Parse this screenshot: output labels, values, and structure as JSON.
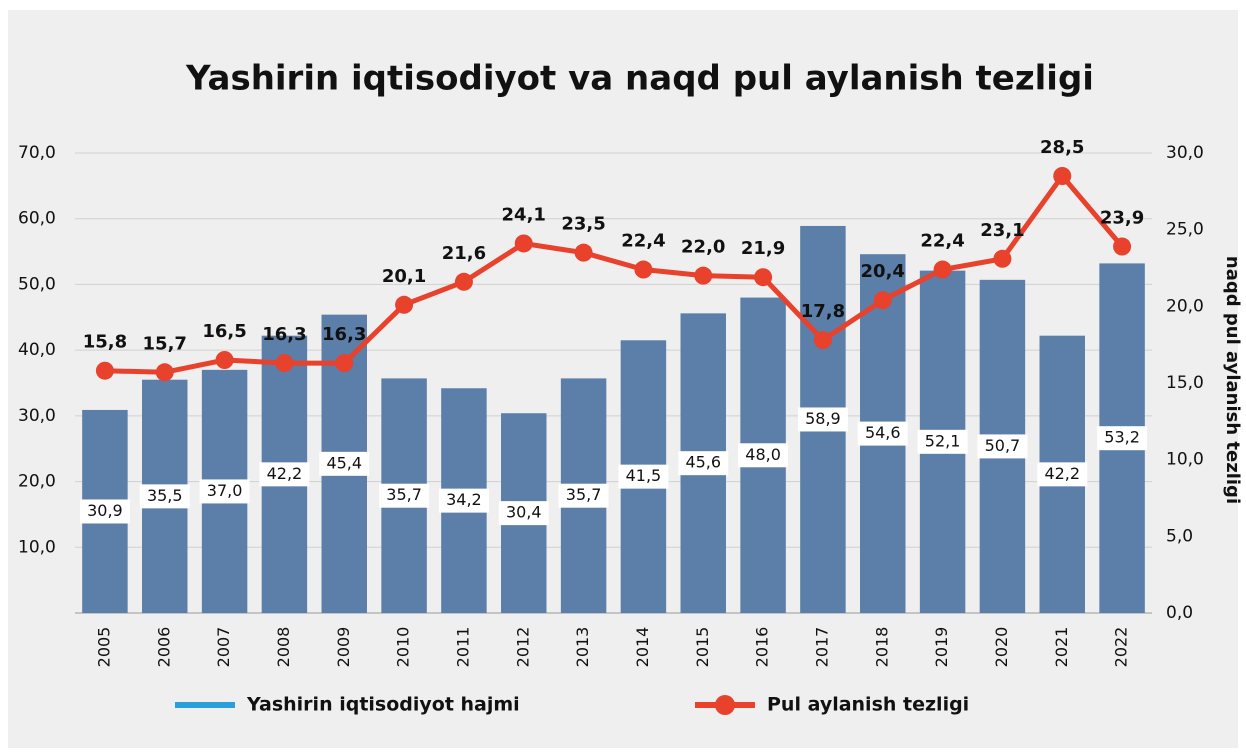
{
  "chart_data": {
    "type": "bar",
    "title": "Yashirin iqtisodiyot va naqd pul aylanish tezligi",
    "y2label": "naqd pul aylanish tezligi",
    "categories": [
      "2005",
      "2006",
      "2007",
      "2008",
      "2009",
      "2010",
      "2011",
      "2012",
      "2013",
      "2014",
      "2015",
      "2016",
      "2017",
      "2018",
      "2019",
      "2020",
      "2021",
      "2022"
    ],
    "series": [
      {
        "name": "Yashirin iqtisodiyot hajmi",
        "type": "bar",
        "color": "#5b7fa8",
        "legend_color": "#2a9fd8",
        "values": [
          30.9,
          35.5,
          37.0,
          42.2,
          45.4,
          35.7,
          34.2,
          30.4,
          35.7,
          41.5,
          45.6,
          48.0,
          58.9,
          54.6,
          52.1,
          50.7,
          42.2,
          53.2
        ],
        "value_labels": [
          "30,9",
          "35,5",
          "37,0",
          "42,2",
          "45,4",
          "35,7",
          "34,2",
          "30,4",
          "35,7",
          "41,5",
          "45,6",
          "48,0",
          "58,9",
          "54,6",
          "52,1",
          "50,7",
          "42,2",
          "53,2"
        ]
      },
      {
        "name": "Pul aylanish tezligi",
        "type": "line",
        "axis": "y2",
        "color": "#e8412c",
        "legend_color": "#e8412c",
        "values": [
          15.8,
          15.7,
          16.5,
          16.3,
          16.3,
          20.1,
          21.6,
          24.1,
          23.5,
          22.4,
          22.0,
          21.9,
          17.8,
          20.4,
          22.4,
          23.1,
          28.5,
          23.9
        ],
        "value_labels": [
          "15,8",
          "15,7",
          "16,5",
          "16,3",
          "16,3",
          "20,1",
          "21,6",
          "24,1",
          "23,5",
          "22,4",
          "22,0",
          "21,9",
          "17,8",
          "20,4",
          "22,4",
          "23,1",
          "28,5",
          "23,9"
        ]
      }
    ],
    "ylim": [
      0,
      70
    ],
    "yticks": [
      {
        "value": 10,
        "label": "10,0"
      },
      {
        "value": 20,
        "label": "20,0"
      },
      {
        "value": 30,
        "label": "30,0"
      },
      {
        "value": 40,
        "label": "40,0"
      },
      {
        "value": 50,
        "label": "50,0"
      },
      {
        "value": 60,
        "label": "60,0"
      },
      {
        "value": 70,
        "label": "70,0"
      }
    ],
    "y2lim": [
      0,
      30
    ],
    "y2ticks": [
      {
        "value": 0,
        "label": "0,0"
      },
      {
        "value": 5,
        "label": "5,0"
      },
      {
        "value": 10,
        "label": "10,0"
      },
      {
        "value": 15,
        "label": "15,0"
      },
      {
        "value": 20,
        "label": "20,0"
      },
      {
        "value": 25,
        "label": "25,0"
      },
      {
        "value": 30,
        "label": "30,0"
      }
    ],
    "grid": true
  }
}
